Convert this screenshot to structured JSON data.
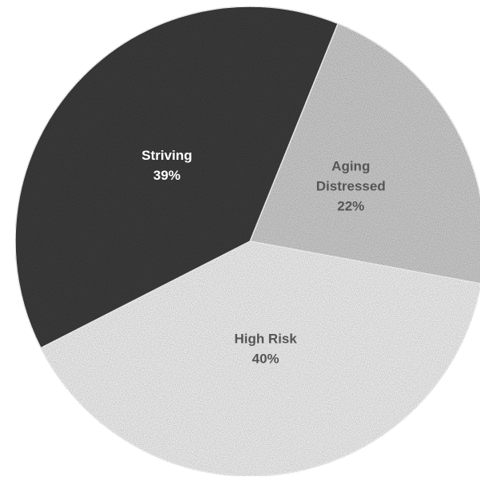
{
  "chart_data": {
    "type": "pie",
    "title": "",
    "slices": [
      {
        "label": "Aging Distressed",
        "label_lines": [
          "Aging",
          "Distressed"
        ],
        "value": 22,
        "value_label": "22%",
        "color": "#cfcfcf",
        "label_color": "#555555"
      },
      {
        "label": "High Risk",
        "label_lines": [
          "High Risk"
        ],
        "value": 40,
        "value_label": "40%",
        "color": "#f4f4f4",
        "label_color": "#555555"
      },
      {
        "label": "Striving",
        "label_lines": [
          "Striving"
        ],
        "value": 39,
        "value_label": "39%",
        "color": "#3d3d3d",
        "label_color": "#ffffff"
      }
    ],
    "start_angle_deg": 22,
    "direction": "clockwise",
    "legend": "none"
  }
}
